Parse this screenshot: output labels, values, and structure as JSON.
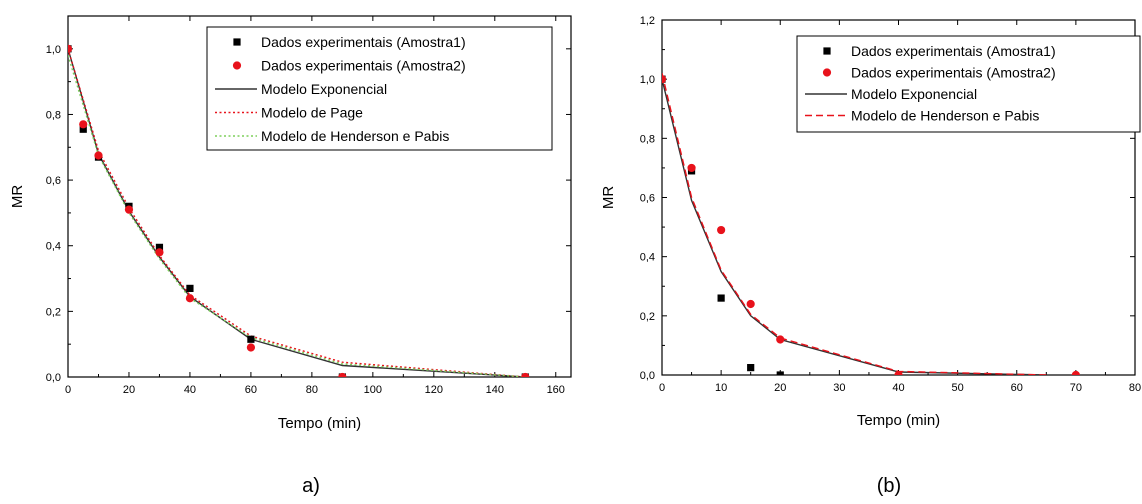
{
  "colors": {
    "amostra1": "#000000",
    "amostra2": "#e8121b",
    "exponencial": "#333333",
    "page": "#e8121b",
    "henderson_a": "#7dcf5a",
    "henderson_b": "#e8121b"
  },
  "chart_data": [
    {
      "panel_label": "a)",
      "type": "scatter",
      "xlabel": "Tempo (min)",
      "ylabel": "MR",
      "xlim": [
        0,
        165
      ],
      "ylim": [
        0,
        1.1
      ],
      "x_ticks": [
        0,
        20,
        40,
        60,
        80,
        100,
        120,
        140,
        160
      ],
      "x_tick_labels": [
        "0",
        "20",
        "40",
        "60",
        "80",
        "100",
        "120",
        "140",
        "160"
      ],
      "y_ticks": [
        0,
        0.2,
        0.4,
        0.6,
        0.8,
        1.0
      ],
      "y_tick_labels": [
        "0,0",
        "0,2",
        "0,4",
        "0,6",
        "0,8",
        "1,0"
      ],
      "legend_placement": "top-right",
      "series": [
        {
          "name": "Dados experimentais (Amostra1)",
          "kind": "square",
          "color": "#000000",
          "x": [
            0,
            5,
            10,
            20,
            30,
            40,
            60,
            90,
            150
          ],
          "y": [
            1.0,
            0.755,
            0.67,
            0.52,
            0.395,
            0.27,
            0.115,
            0.0,
            0.0
          ]
        },
        {
          "name": "Dados experimentais (Amostra2)",
          "kind": "circle",
          "color": "#e8121b",
          "x": [
            0,
            5,
            10,
            20,
            30,
            40,
            60,
            90,
            150
          ],
          "y": [
            1.0,
            0.77,
            0.675,
            0.51,
            0.38,
            0.24,
            0.09,
            0.0,
            0.0
          ]
        },
        {
          "name": "Modelo Exponencial",
          "kind": "line",
          "style": "solid",
          "color": "#333333",
          "x": [
            0,
            10,
            20,
            30,
            40,
            60,
            90,
            150
          ],
          "y": [
            1.0,
            0.68,
            0.505,
            0.365,
            0.245,
            0.115,
            0.035,
            0.0
          ]
        },
        {
          "name": "Modelo de Page",
          "kind": "line",
          "style": "dotted",
          "color": "#e8121b",
          "x": [
            0,
            10,
            20,
            30,
            40,
            60,
            90,
            150
          ],
          "y": [
            1.0,
            0.69,
            0.515,
            0.37,
            0.25,
            0.125,
            0.045,
            0.0
          ]
        },
        {
          "name": "Modelo de Henderson e Pabis",
          "kind": "line",
          "style": "dotted",
          "color": "#7dcf5a",
          "x": [
            0,
            10,
            20,
            30,
            40,
            60,
            90,
            150
          ],
          "y": [
            0.98,
            0.675,
            0.5,
            0.36,
            0.24,
            0.12,
            0.04,
            0.0
          ]
        }
      ]
    },
    {
      "panel_label": "(b)",
      "type": "scatter",
      "xlabel": "Tempo (min)",
      "ylabel": "MR",
      "xlim": [
        0,
        80
      ],
      "ylim": [
        0,
        1.2
      ],
      "x_ticks": [
        0,
        10,
        20,
        30,
        40,
        50,
        60,
        70,
        80
      ],
      "x_tick_labels": [
        "0",
        "10",
        "20",
        "30",
        "40",
        "50",
        "60",
        "70",
        "80"
      ],
      "y_ticks": [
        0,
        0.2,
        0.4,
        0.6,
        0.8,
        1.0,
        1.2
      ],
      "y_tick_labels": [
        "0,0",
        "0,2",
        "0,4",
        "0,6",
        "0,8",
        "1,0",
        "1,2"
      ],
      "legend_placement": "top-right",
      "series": [
        {
          "name": "Dados experimentais (Amostra1)",
          "kind": "square",
          "color": "#000000",
          "x": [
            0,
            5,
            10,
            15,
            20
          ],
          "y": [
            1.0,
            0.69,
            0.26,
            0.025,
            0.0
          ]
        },
        {
          "name": "Dados experimentais (Amostra2)",
          "kind": "circle",
          "color": "#e8121b",
          "x": [
            0,
            5,
            10,
            15,
            20,
            40,
            70
          ],
          "y": [
            1.0,
            0.7,
            0.49,
            0.24,
            0.12,
            0.0,
            0.0
          ]
        },
        {
          "name": "Modelo Exponencial",
          "kind": "line",
          "style": "solid",
          "color": "#333333",
          "x": [
            0,
            5,
            10,
            15,
            20,
            40,
            65
          ],
          "y": [
            1.0,
            0.59,
            0.35,
            0.2,
            0.12,
            0.01,
            0.0
          ]
        },
        {
          "name": "Modelo de Henderson e Pabis",
          "kind": "line",
          "style": "dashed",
          "color": "#e8121b",
          "x": [
            0,
            5,
            10,
            15,
            20,
            40,
            65
          ],
          "y": [
            1.02,
            0.6,
            0.355,
            0.205,
            0.125,
            0.012,
            0.0
          ]
        }
      ]
    }
  ]
}
